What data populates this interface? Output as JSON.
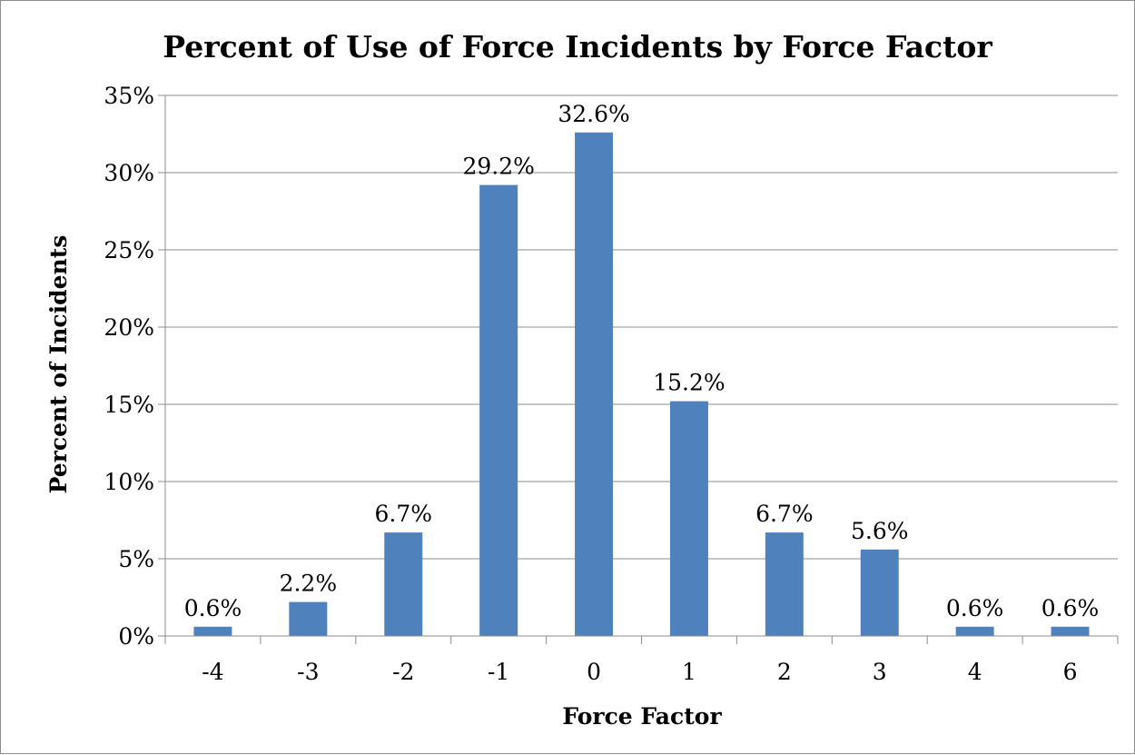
{
  "chart_data": {
    "type": "bar",
    "title": "Percent of Use of Force Incidents by Force Factor",
    "xlabel": "Force Factor",
    "ylabel": "Percent of Incidents",
    "categories": [
      "-4",
      "-3",
      "-2",
      "-1",
      "0",
      "1",
      "2",
      "3",
      "4",
      "6"
    ],
    "values": [
      0.6,
      2.2,
      6.7,
      29.2,
      32.6,
      15.2,
      6.7,
      5.6,
      0.6,
      0.6
    ],
    "data_labels": [
      "0.6%",
      "2.2%",
      "6.7%",
      "29.2%",
      "32.6%",
      "15.2%",
      "6.7%",
      "5.6%",
      "0.6%",
      "0.6%"
    ],
    "ylim": [
      0,
      35
    ],
    "yticks": [
      0,
      5,
      10,
      15,
      20,
      25,
      30,
      35
    ],
    "ytick_labels": [
      "0%",
      "5%",
      "10%",
      "15%",
      "20%",
      "25%",
      "30%",
      "35%"
    ],
    "grid": true,
    "legend": "none",
    "bar_color": "#4F81BD"
  }
}
